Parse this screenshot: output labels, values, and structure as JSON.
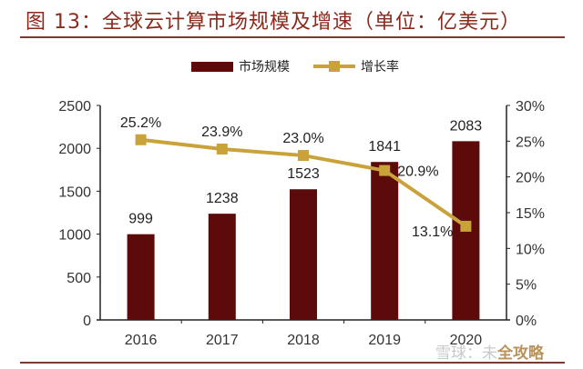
{
  "figure": {
    "title": "图 13：全球云计算市场规模及增速（单位：亿美元）",
    "watermark_prefix": "雪球：未",
    "watermark_suffix": "全攻略"
  },
  "colors": {
    "bar": "#5c0a0a",
    "line": "#c9a23a",
    "title": "#8b2a1c",
    "rule": "#7a3a30"
  },
  "chart_data": {
    "type": "bar",
    "title": "图 13：全球云计算市场规模及增速（单位：亿美元）",
    "categories": [
      "2016",
      "2017",
      "2018",
      "2019",
      "2020"
    ],
    "series": [
      {
        "name": "市场规模",
        "type": "bar",
        "axis": "left",
        "values": [
          999,
          1238,
          1523,
          1841,
          2083
        ],
        "labels": [
          "999",
          "1238",
          "1523",
          "1841",
          "2083"
        ]
      },
      {
        "name": "增长率",
        "type": "line",
        "axis": "right",
        "values": [
          25.2,
          23.9,
          23.0,
          20.9,
          13.1
        ],
        "labels": [
          "25.2%",
          "23.9%",
          "23.0%",
          "20.9%",
          "13.1%"
        ]
      }
    ],
    "left_axis": {
      "ylim": [
        0,
        2500
      ],
      "ticks": [
        "0",
        "500",
        "1000",
        "1500",
        "2000",
        "2500"
      ]
    },
    "right_axis": {
      "ylim": [
        0,
        30
      ],
      "ticks": [
        "0%",
        "5%",
        "10%",
        "15%",
        "20%",
        "25%",
        "30%"
      ]
    },
    "xlabel": "",
    "ylabel": "",
    "grid": false,
    "legend_position": "top"
  }
}
